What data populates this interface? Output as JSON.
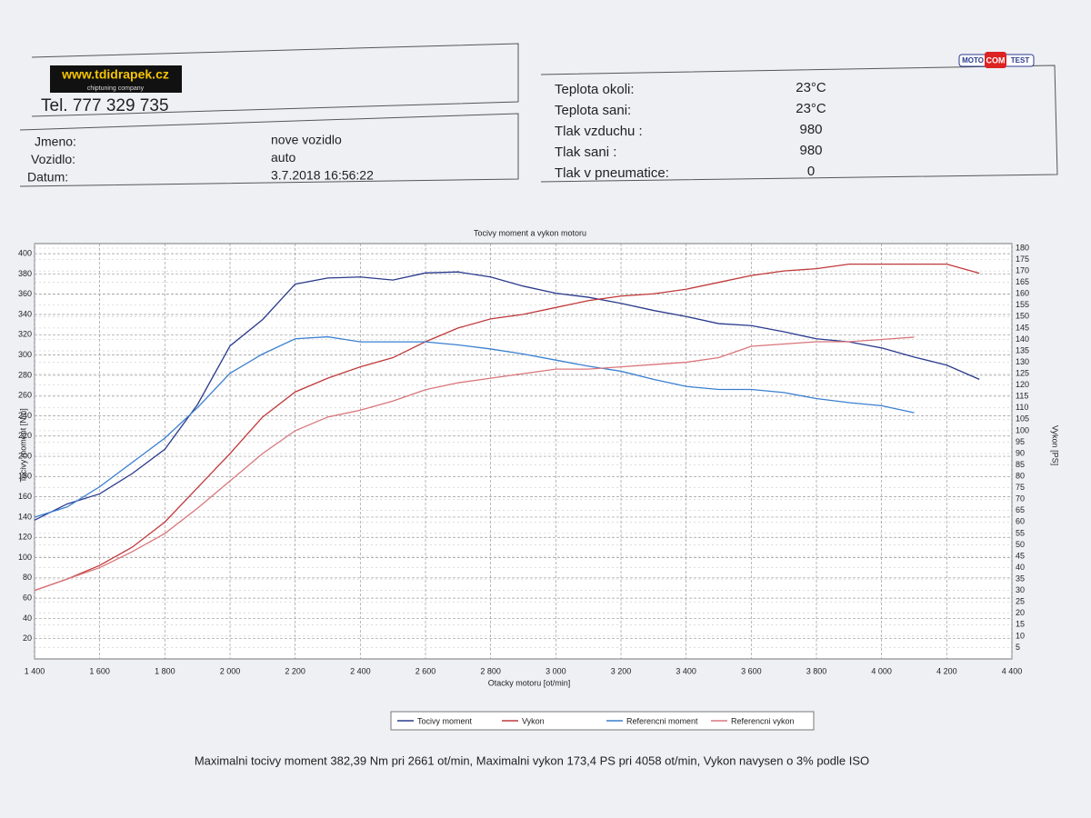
{
  "header": {
    "logo": "www.tdidrapek.cz",
    "tagline": "chiptuning company",
    "phone": "Tel. 777 329 735",
    "fields": [
      {
        "label": "Jmeno:",
        "value": "nove vozidlo"
      },
      {
        "label": "Vozidlo:",
        "value": "auto"
      },
      {
        "label": "Datum:",
        "value": "3.7.2018 16:56:22"
      }
    ],
    "conditions": [
      {
        "label": "Teplota okoli:",
        "value": "23°C"
      },
      {
        "label": "Teplota sani:",
        "value": "23°C"
      },
      {
        "label": "Tlak vzduchu :",
        "value": "980"
      },
      {
        "label": "Tlak sani :",
        "value": "980"
      },
      {
        "label": "Tlak v pneumatice:",
        "value": "0"
      }
    ],
    "brand": [
      "MOTO",
      "COM",
      "TEST"
    ]
  },
  "chart_data": {
    "type": "line",
    "title": "Tocivy moment a vykon motoru",
    "xlabel": "Otacky motoru [ot/min]",
    "ylabel": "Tocivy moment [Nm]",
    "y2label": "Vykon [PS]",
    "x": [
      1400,
      1500,
      1600,
      1700,
      1800,
      1900,
      2000,
      2100,
      2200,
      2300,
      2400,
      2500,
      2600,
      2700,
      2800,
      2900,
      3000,
      3100,
      3200,
      3300,
      3400,
      3500,
      3600,
      3700,
      3800,
      3900,
      4000,
      4100,
      4200,
      4300
    ],
    "xlim": [
      1400,
      4400
    ],
    "xticks": [
      {
        "value": 1400,
        "label": "1 400"
      },
      {
        "value": 1600,
        "label": "1 600"
      },
      {
        "value": 1800,
        "label": "1 800"
      },
      {
        "value": 2000,
        "label": "2 000"
      },
      {
        "value": 2200,
        "label": "2 200"
      },
      {
        "value": 2400,
        "label": "2 400"
      },
      {
        "value": 2600,
        "label": "2 600"
      },
      {
        "value": 2800,
        "label": "2 800"
      },
      {
        "value": 3000,
        "label": "3 000"
      },
      {
        "value": 3200,
        "label": "3 200"
      },
      {
        "value": 3400,
        "label": "3 400"
      },
      {
        "value": 3600,
        "label": "3 600"
      },
      {
        "value": 3800,
        "label": "3 800"
      },
      {
        "value": 4000,
        "label": "4 000"
      },
      {
        "value": 4200,
        "label": "4 200"
      },
      {
        "value": 4400,
        "label": "4 400"
      }
    ],
    "ylim": [
      0,
      410
    ],
    "yticks": [
      20,
      40,
      60,
      80,
      100,
      120,
      140,
      160,
      180,
      200,
      220,
      240,
      260,
      280,
      300,
      320,
      340,
      360,
      380,
      400
    ],
    "y2lim": [
      0,
      182
    ],
    "y2ticks": [
      5,
      10,
      15,
      20,
      25,
      30,
      35,
      40,
      45,
      50,
      55,
      60,
      65,
      70,
      75,
      80,
      85,
      90,
      95,
      100,
      105,
      110,
      115,
      120,
      125,
      130,
      135,
      140,
      145,
      150,
      155,
      160,
      165,
      170,
      175,
      180
    ],
    "grid": true,
    "series": [
      {
        "name": "Tocivy moment",
        "color": "#2a3a8c",
        "values": [
          137,
          153,
          163,
          183,
          207,
          251,
          309,
          335,
          370,
          376,
          377,
          374,
          381,
          382,
          377,
          368,
          361,
          357,
          351,
          344,
          338,
          331,
          329,
          323,
          316,
          313,
          307,
          298,
          290,
          276
        ]
      },
      {
        "name": "Vykon",
        "color": "#c0393b",
        "axis": "y2",
        "values": [
          30,
          35,
          41,
          49,
          60,
          75,
          90,
          106,
          117,
          123,
          128,
          132,
          139,
          145,
          149,
          151,
          154,
          157,
          159,
          160,
          162,
          165,
          168,
          170,
          171,
          173,
          173,
          173,
          173,
          169
        ]
      },
      {
        "name": "Referencni moment",
        "color": "#3a7fd0",
        "values": [
          140,
          150,
          170,
          194,
          218,
          248,
          282,
          301,
          316,
          318,
          313,
          313,
          313,
          310,
          306,
          301,
          295,
          289,
          284,
          276,
          269,
          266,
          266,
          263,
          257,
          253,
          250,
          243,
          null,
          null
        ]
      },
      {
        "name": "Referencni vykon",
        "color": "#d9767a",
        "axis": "y2",
        "values": [
          30,
          35,
          40,
          47,
          55,
          66,
          78,
          90,
          100,
          106,
          109,
          113,
          118,
          121,
          123,
          125,
          127,
          127,
          128,
          129,
          130,
          132,
          137,
          138,
          139,
          139,
          140,
          141,
          null,
          null
        ]
      }
    ]
  },
  "footer": "Maximalni tocivy moment 382,39 Nm pri 2661 ot/min,  Maximalni vykon 173,4 PS pri 4058 ot/min,  Vykon navysen o 3% podle ISO"
}
